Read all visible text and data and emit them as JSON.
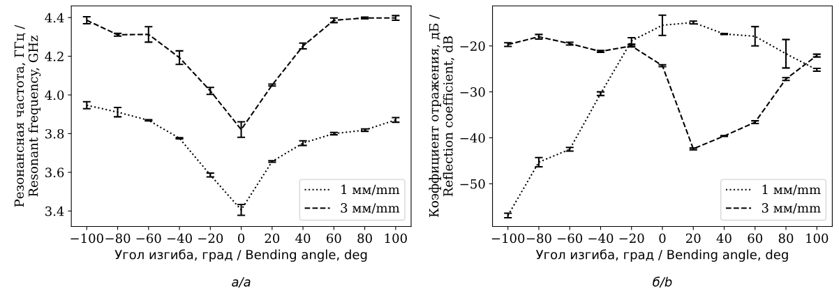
{
  "chart_data": [
    {
      "type": "line",
      "xlabel": "Угол изгиба, град / Bending angle, deg",
      "ylabel": "Резонансная частота, ГГц /\nResonant frequency, GHz",
      "annotations": [
        "а/a"
      ],
      "x": [
        -100,
        -80,
        -60,
        -40,
        -20,
        0,
        20,
        40,
        60,
        80,
        100
      ],
      "xlim": [
        -110,
        110
      ],
      "xticks": [
        {
          "value": -100,
          "label": "−100"
        },
        {
          "value": -80,
          "label": "−80"
        },
        {
          "value": -60,
          "label": "−60"
        },
        {
          "value": -40,
          "label": "−40"
        },
        {
          "value": -20,
          "label": "−20"
        },
        0,
        20,
        40,
        60,
        80,
        100
      ],
      "ylim": [
        3.32,
        4.46
      ],
      "yticks": [
        {
          "value": 3.4,
          "label": "3.4"
        },
        {
          "value": 3.6,
          "label": "3.6"
        },
        {
          "value": 3.8,
          "label": "3.8"
        },
        {
          "value": 4.0,
          "label": "4.0"
        },
        {
          "value": 4.2,
          "label": "4.2"
        },
        {
          "value": 4.4,
          "label": "4.4"
        }
      ],
      "legend": "bottom right",
      "grid": false,
      "marker": "none",
      "series": [
        {
          "name": "1 мм/mm",
          "color": "#000000",
          "line_style": "dotted",
          "values": [
            3.947,
            3.911,
            3.869,
            3.776,
            3.586,
            3.406,
            3.656,
            3.751,
            3.8,
            3.818,
            3.871
          ],
          "errors": [
            0.018,
            0.024,
            0.003,
            0.003,
            0.01,
            0.028,
            0.004,
            0.012,
            0.006,
            0.006,
            0.012
          ]
        },
        {
          "name": "3 мм/mm",
          "color": "#000000",
          "line_style": "dashed",
          "values": [
            4.386,
            4.311,
            4.313,
            4.193,
            4.021,
            3.821,
            4.051,
            4.253,
            4.386,
            4.398,
            4.398
          ],
          "errors": [
            0.018,
            0.007,
            0.04,
            0.035,
            0.018,
            0.04,
            0.005,
            0.015,
            0.012,
            0.004,
            0.012
          ]
        }
      ]
    },
    {
      "type": "line",
      "xlabel": "Угол изгиба, град / Bending angle, deg",
      "ylabel": "Коэффициент отражения, дБ /\nReflection coefficient, dB",
      "annotations": [
        "б/b"
      ],
      "x": [
        -100,
        -80,
        -60,
        -40,
        -20,
        0,
        20,
        40,
        60,
        80,
        100
      ],
      "xlim": [
        -110,
        110
      ],
      "xticks": [
        {
          "value": -100,
          "label": "−100"
        },
        {
          "value": -80,
          "label": "−80"
        },
        {
          "value": -60,
          "label": "−60"
        },
        {
          "value": -40,
          "label": "−40"
        },
        {
          "value": -20,
          "label": "−20"
        },
        0,
        20,
        40,
        60,
        80,
        100
      ],
      "ylim": [
        -59.3,
        -11.3
      ],
      "yticks": [
        {
          "value": -50,
          "label": "−50"
        },
        {
          "value": -40,
          "label": "−40"
        },
        {
          "value": -30,
          "label": "−30"
        },
        {
          "value": -20,
          "label": "−20"
        }
      ],
      "legend": "bottom right",
      "grid": false,
      "marker": "none",
      "series": [
        {
          "name": "1 мм/mm",
          "color": "#000000",
          "line_style": "dotted",
          "values": [
            -56.9,
            -45.3,
            -42.5,
            -30.4,
            -18.9,
            -15.5,
            -14.9,
            -17.4,
            -17.9,
            -21.7,
            -25.2
          ],
          "errors": [
            0.5,
            1.0,
            0.4,
            0.4,
            0.7,
            2.2,
            0.3,
            0.1,
            2.1,
            3.1,
            0.3
          ]
        },
        {
          "name": "3 мм/mm",
          "color": "#000000",
          "line_style": "dashed",
          "values": [
            -19.7,
            -18.0,
            -19.5,
            -21.2,
            -20.0,
            -24.3,
            -42.4,
            -39.6,
            -36.6,
            -27.2,
            -22.1
          ],
          "errors": [
            0.4,
            0.5,
            0.3,
            0.2,
            0.2,
            0.2,
            0.2,
            0.1,
            0.3,
            0.3,
            0.3
          ]
        }
      ]
    }
  ]
}
